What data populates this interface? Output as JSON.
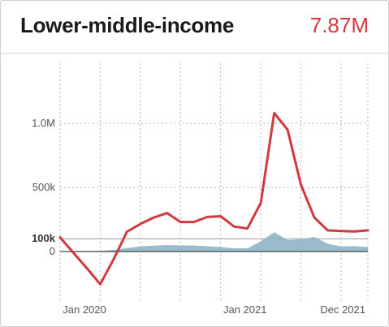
{
  "card": {
    "title": "Lower-middle-income",
    "total": "7.87M"
  },
  "colors": {
    "line": "#d2393f",
    "area": "#8fb4c6",
    "title": "#1a1a1a",
    "total": "#d2393f"
  },
  "chart_data": {
    "type": "line",
    "title": "Lower-middle-income",
    "x": [
      "2020-01",
      "2020-02",
      "2020-03",
      "2020-04",
      "2020-05",
      "2020-06",
      "2020-07",
      "2020-08",
      "2020-09",
      "2020-10",
      "2020-11",
      "2020-12",
      "2021-01",
      "2021-02",
      "2021-03",
      "2021-04",
      "2021-05",
      "2021-06",
      "2021-07",
      "2021-08",
      "2021-09",
      "2021-10",
      "2021-11",
      "2021-12"
    ],
    "series": [
      {
        "style": "line",
        "values": [
          110000,
          -10000,
          -130000,
          -255000,
          -60000,
          155000,
          215000,
          265000,
          300000,
          230000,
          230000,
          270000,
          275000,
          195000,
          180000,
          380000,
          1080000,
          950000,
          520000,
          265000,
          165000,
          160000,
          157000,
          165000
        ]
      },
      {
        "style": "area",
        "values": [
          -2000,
          2000,
          3000,
          5000,
          12000,
          27000,
          40000,
          46000,
          50000,
          48000,
          47000,
          42000,
          35000,
          25000,
          25000,
          80000,
          150000,
          90000,
          95000,
          115000,
          60000,
          40000,
          42000,
          35000
        ]
      }
    ],
    "yticks": [
      {
        "value": 1000000,
        "label": "1.0M"
      },
      {
        "value": 500000,
        "label": "500k"
      },
      {
        "value": 100000,
        "label": "100k",
        "bold": true
      },
      {
        "value": 0,
        "label": "0"
      }
    ],
    "xticks": [
      {
        "x": "2020-01",
        "label": "Jan 2020"
      },
      {
        "x": "2021-01",
        "label": "Jan 2021"
      },
      {
        "x": "2021-12",
        "label": "Dec 2021"
      }
    ],
    "ylim": [
      -400000,
      1450000
    ],
    "grid": true
  }
}
